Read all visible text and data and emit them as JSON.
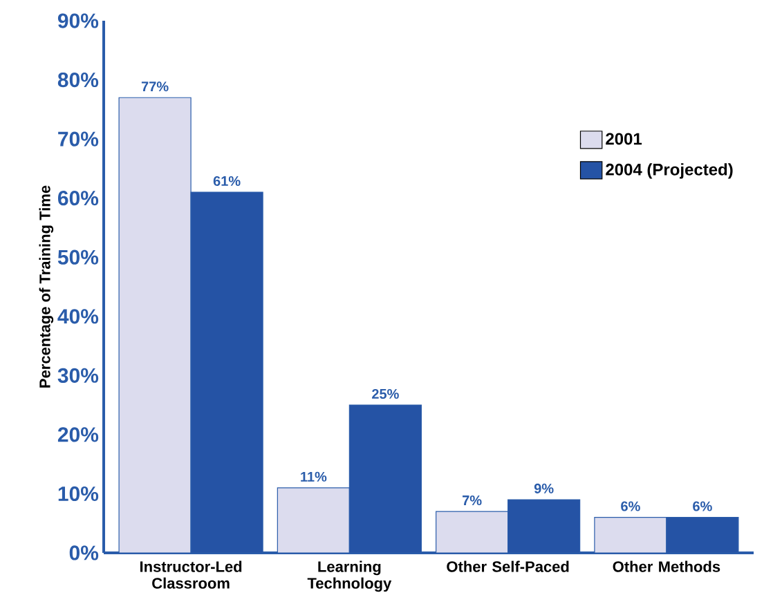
{
  "chart_data": {
    "type": "bar",
    "ylabel": "Percentage of Training Time",
    "categories": [
      "Instructor-Led Classroom",
      "Learning Technology",
      "Other Self-Paced",
      "Other Methods"
    ],
    "series": [
      {
        "name": "2001",
        "color": "#dcdcee",
        "values": [
          77,
          11,
          7,
          6
        ],
        "value_labels": [
          "77%",
          "11%",
          "7%",
          "6%"
        ]
      },
      {
        "name": "2004 (Projected)",
        "color": "#2553a5",
        "values": [
          61,
          25,
          9,
          6
        ],
        "value_labels": [
          "61%",
          "25%",
          "9%",
          "6%"
        ]
      }
    ],
    "ylim": [
      0,
      90
    ],
    "yticks": [
      {
        "value": 0,
        "label": "0%"
      },
      {
        "value": 10,
        "label": "10%"
      },
      {
        "value": 20,
        "label": "20%"
      },
      {
        "value": 30,
        "label": "30%"
      },
      {
        "value": 40,
        "label": "40%"
      },
      {
        "value": 50,
        "label": "50%"
      },
      {
        "value": 60,
        "label": "60%"
      },
      {
        "value": 70,
        "label": "70%"
      },
      {
        "value": 80,
        "label": "80%"
      },
      {
        "value": 90,
        "label": "90%"
      }
    ],
    "grid": false,
    "legend": "top right"
  }
}
